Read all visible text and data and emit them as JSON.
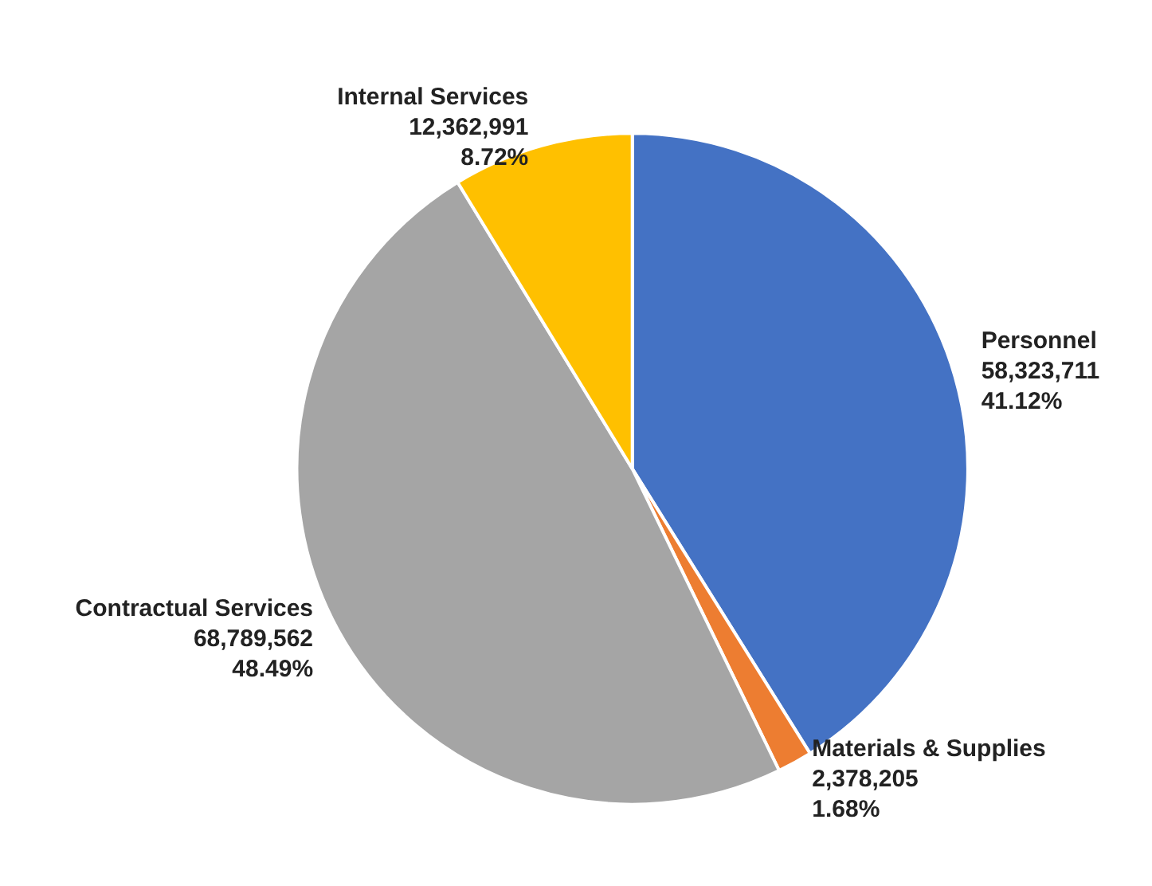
{
  "chart_data": {
    "type": "pie",
    "categories": [
      "Personnel",
      "Materials & Supplies",
      "Contractual Services",
      "Internal Services"
    ],
    "values": [
      58323711,
      2378205,
      68789562,
      12362991
    ],
    "colors": [
      "#4472c4",
      "#ed7d31",
      "#a5a5a5",
      "#ffc000"
    ],
    "value_labels": [
      "58,323,711\n41.12%",
      "2,378,205\n1.68%",
      "68,789,562\n48.49%",
      "12,362,991\n8.72%"
    ],
    "legend": false
  }
}
